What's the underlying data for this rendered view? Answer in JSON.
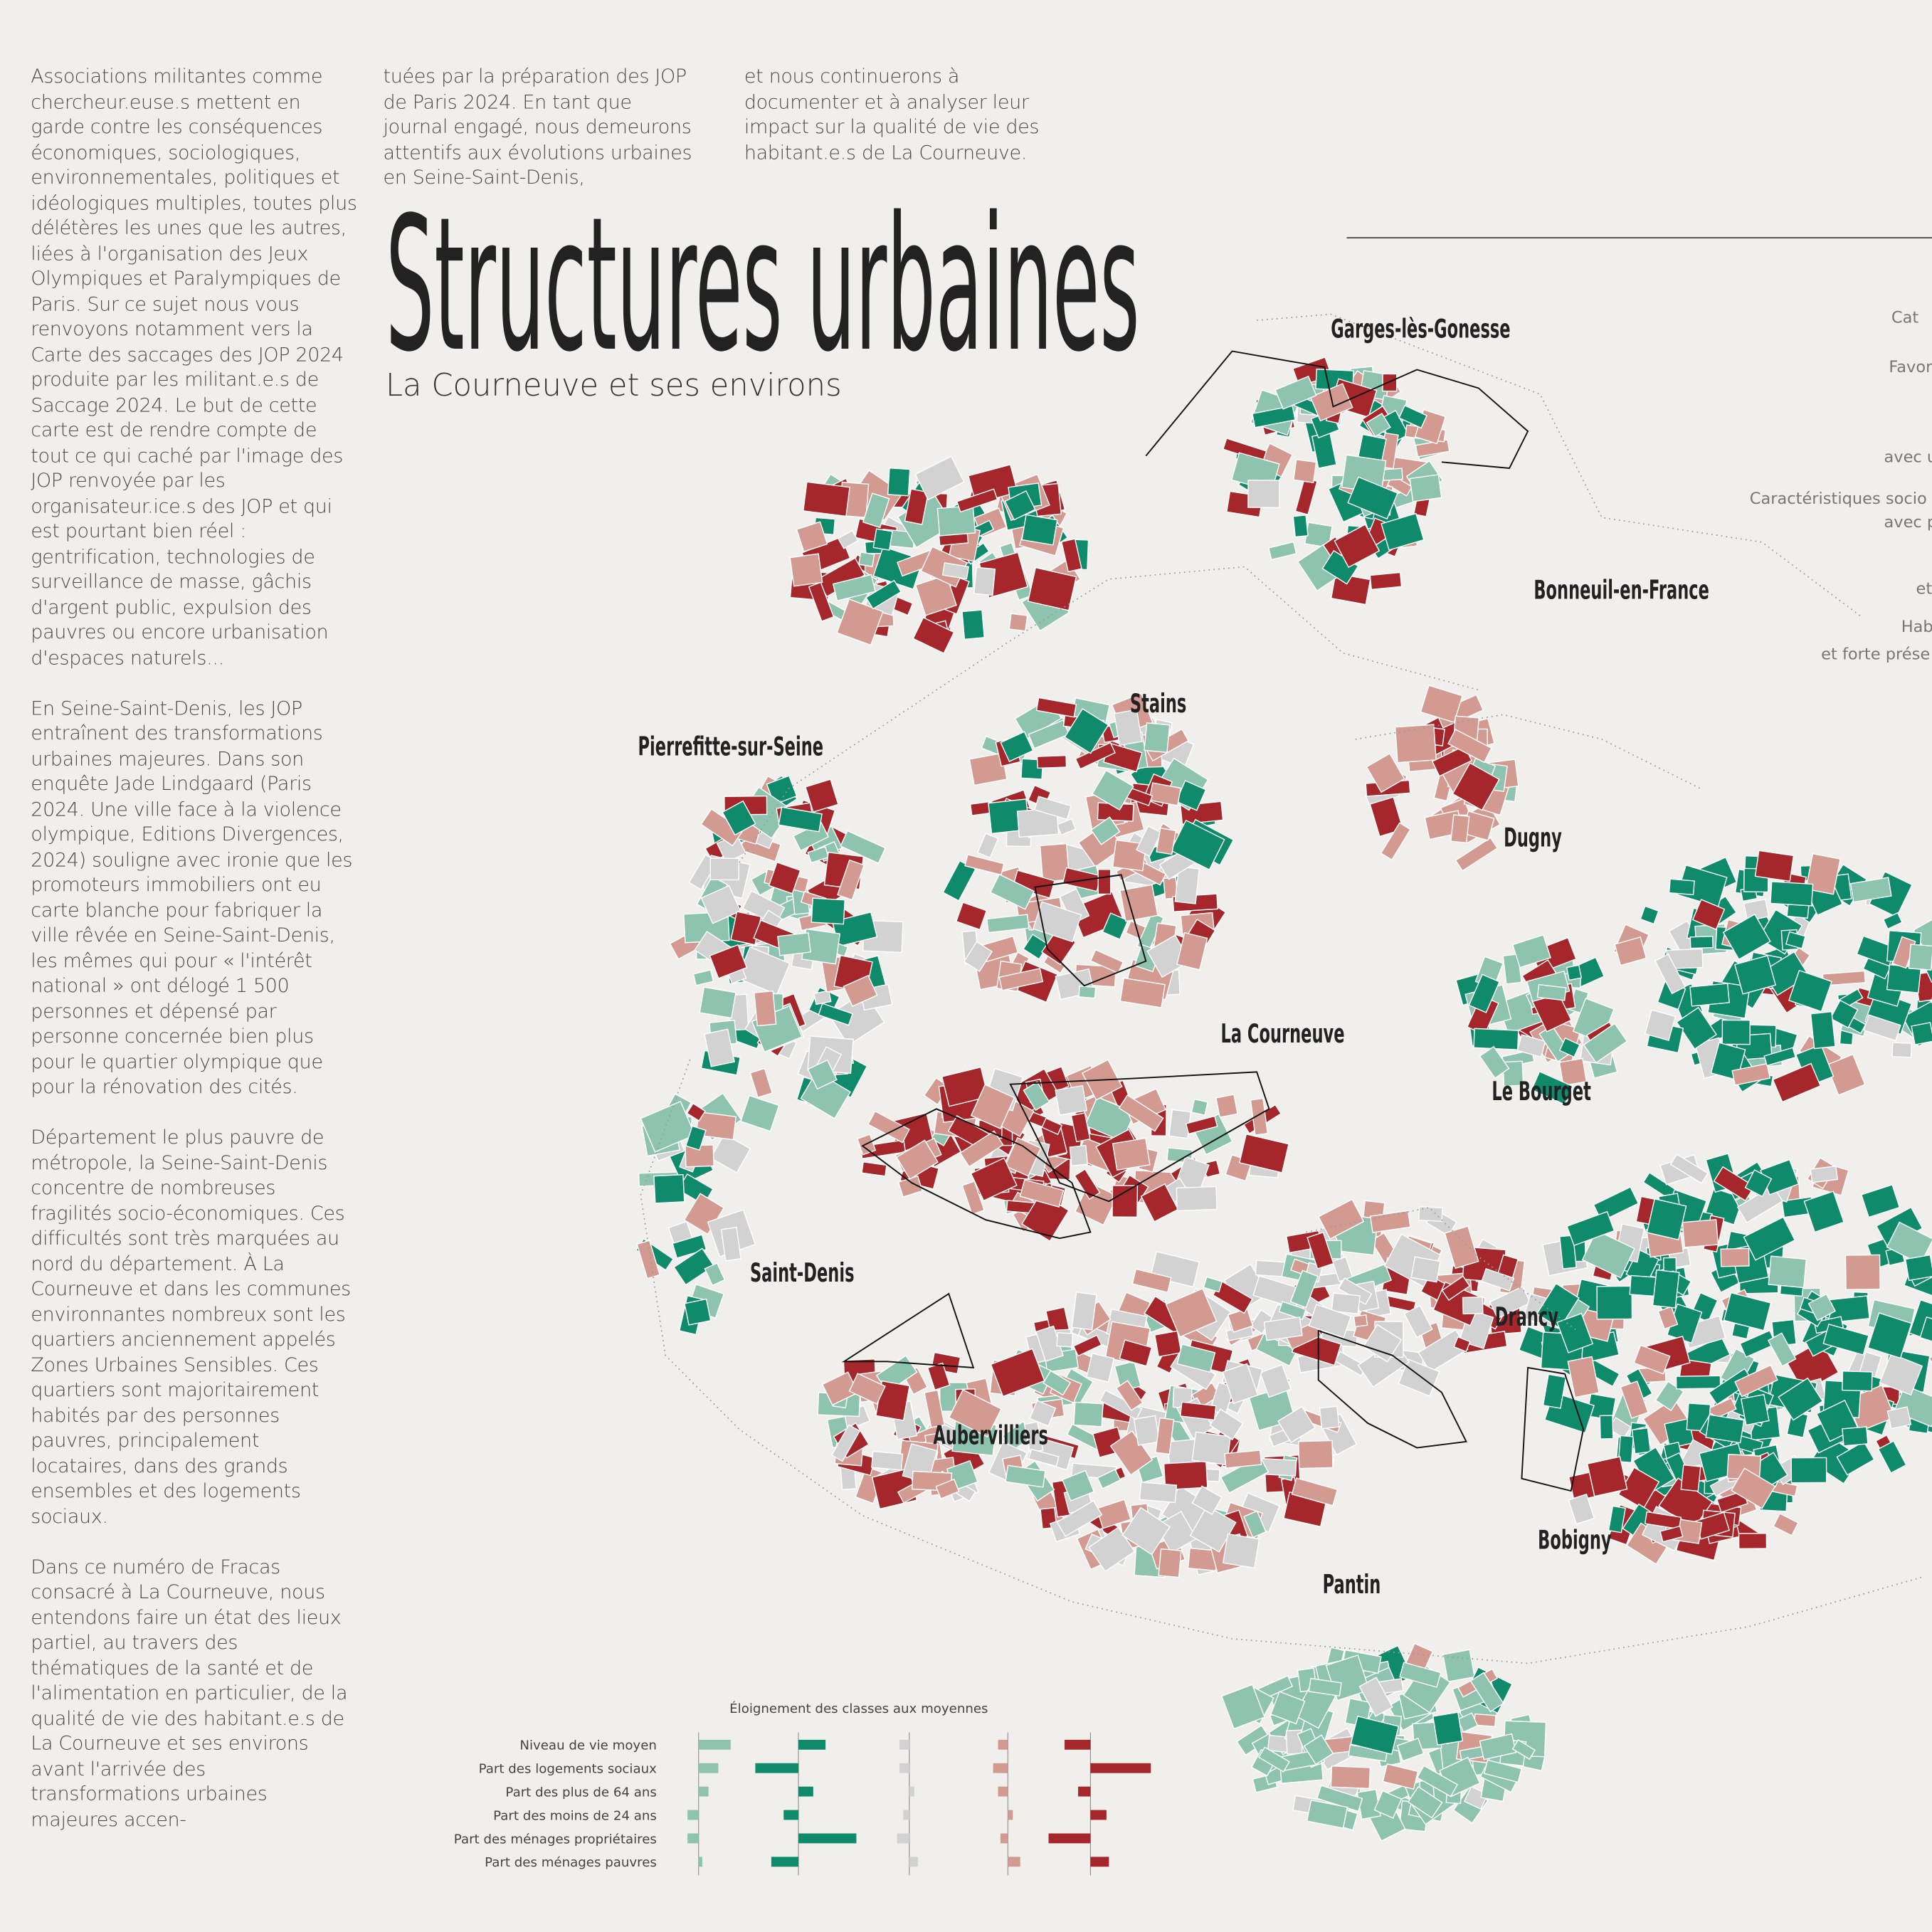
{
  "text": {
    "columns": [
      [
        "Associations militantes comme chercheur.euse.s mettent en garde contre les conséquences économiques, sociologiques, environnementales, politiques et idéologiques multiples, toutes plus délétères les unes que les autres, liées à l'organisation des Jeux Olympiques et Paralympiques de Paris. Sur ce sujet nous vous renvoyons notamment vers la Carte des saccages des JOP 2024 produite par les militant.e.s de Saccage 2024. Le but de cette carte est de rendre compte de tout ce qui caché par l'image des JOP renvoyée par les organisateur.ice.s des JOP et qui est pourtant bien réel : gentrification, technologies de surveillance de masse, gâchis d'argent public, expulsion des pauvres ou encore urbanisation d'espaces naturels...",
        "En Seine-Saint-Denis, les JOP entraînent des transformations urbaines majeures. Dans son enquête Jade Lindgaard (Paris 2024. Une ville face à la violence olympique, Editions Divergences, 2024) souligne avec ironie que les promoteurs immobiliers ont eu carte blanche pour fabriquer la ville rêvée en Seine-Saint-Denis, les mêmes qui pour « l'intérêt national » ont délogé 1 500 personnes et dépensé par personne concernée bien plus pour le quartier olympique que pour la rénovation des cités.",
        "Département le plus pauvre de métropole, la Seine-Saint-Denis concentre de nombreuses fragilités socio-économiques. Ces difficultés sont très marquées au nord du département. À La Courneuve et dans les communes environnantes nombreux sont les quartiers anciennement appelés Zones Urbaines Sensibles. Ces quartiers sont majoritairement habités par des personnes pauvres, principalement locataires, dans des grands ensembles et des logements sociaux.",
        "Dans ce numéro de Fracas consacré à La Courneuve, nous entendons faire un état des lieux partiel, au travers des thématiques de la santé et de l'alimentation en particulier, de la qualité de vie des habitant.e.s de La Courneuve et ses environs avant l'arrivée des transformations urbaines majeures accen-"
      ],
      [
        "tuées par la préparation des JOP de Paris 2024. En tant que journal engagé, nous demeurons attentifs aux évolutions urbaines en Seine-Saint-Denis,"
      ],
      [
        "et nous continuerons à documenter et à analyser leur impact sur la qualité de vie des habitant.e.s de La Courneuve."
      ]
    ]
  },
  "map": {
    "title": "Structures urbaines",
    "subtitle": "La Courneuve et ses environs",
    "places": [
      "Garges-lès-Gonesse",
      "Bonneuil-en-France",
      "Stains",
      "Pierrefitte-sur-Seine",
      "Dugny",
      "La Courneuve",
      "Le Bourget",
      "Saint-Denis",
      "Drancy",
      "Aubervilliers",
      "Bobigny",
      "Pantin"
    ],
    "side_legend": [
      "Cat",
      "Favor",
      "avec u",
      "Caractéristiques socio",
      "avec p",
      "et",
      "Hab",
      "et forte prése"
    ]
  },
  "chart_data": {
    "type": "bar",
    "title": "Éloignement des classes aux moyennes",
    "categories": [
      "Niveau de vie moyen",
      "Part des logements sociaux",
      "Part des plus de 64 ans",
      "Part des moins de 24 ans",
      "Part des ménages propriétaires",
      "Part des ménages pauvres"
    ],
    "xlim": [
      -50,
      50
    ],
    "series": [
      {
        "color": "#8ec3af",
        "values": [
          26,
          16,
          8,
          -9,
          -9,
          3
        ]
      },
      {
        "color": "#0f8a6b",
        "values": [
          22,
          -35,
          12,
          -12,
          47,
          -22
        ]
      },
      {
        "color": "#d2d2d2",
        "values": [
          -8,
          -8,
          4,
          -5,
          -10,
          7
        ]
      },
      {
        "color": "#d39a92",
        "values": [
          -8,
          -12,
          -8,
          4,
          -6,
          10
        ]
      },
      {
        "color": "#a5272c",
        "values": [
          -21,
          49,
          -10,
          13,
          -34,
          15
        ]
      }
    ]
  }
}
